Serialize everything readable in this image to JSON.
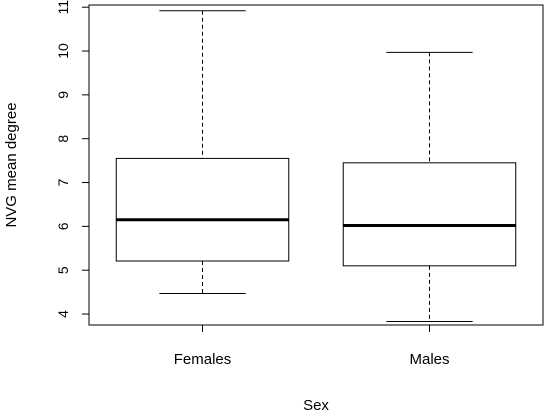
{
  "chart_data": {
    "type": "boxplot",
    "title": "",
    "xlabel": "Sex",
    "ylabel": "NVG mean degree",
    "ylim": [
      3.75,
      11.05
    ],
    "yticks": [
      "4",
      "5",
      "6",
      "7",
      "8",
      "9",
      "10",
      "11"
    ],
    "grid": false,
    "categories": [
      "Females",
      "Males"
    ],
    "boxes": [
      {
        "category": "Females",
        "min": 4.47,
        "q1": 5.21,
        "median": 6.15,
        "q3": 7.55,
        "max": 10.92
      },
      {
        "category": "Males",
        "min": 3.83,
        "q1": 5.1,
        "median": 6.02,
        "q3": 7.45,
        "max": 9.97
      }
    ]
  }
}
